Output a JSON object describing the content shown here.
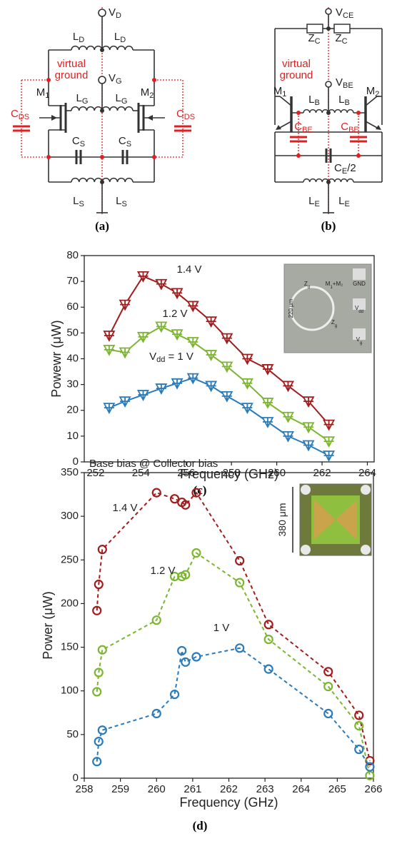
{
  "circuits": [
    {
      "panel": "(a)",
      "labels": [
        {
          "t": "V",
          "s": "D"
        },
        {
          "t": "L",
          "s": "D"
        },
        {
          "t": "L",
          "s": "D"
        },
        {
          "t": "virtual",
          "color": "#e02020"
        },
        {
          "t": "ground",
          "color": "#e02020"
        },
        {
          "t": "V",
          "s": "G"
        },
        {
          "t": "C",
          "s": "DS",
          "color": "#e02020"
        },
        {
          "t": "C",
          "s": "DS",
          "color": "#e02020"
        },
        {
          "t": "M",
          "s": "1"
        },
        {
          "t": "M",
          "s": "2"
        },
        {
          "t": "L",
          "s": "G"
        },
        {
          "t": "L",
          "s": "G"
        },
        {
          "t": "C",
          "s": "S"
        },
        {
          "t": "C",
          "s": "S"
        },
        {
          "t": "L",
          "s": "S"
        },
        {
          "t": "L",
          "s": "S"
        }
      ]
    },
    {
      "panel": "(b)",
      "labels": [
        {
          "t": "V",
          "s": "CE"
        },
        {
          "t": "Z",
          "s": "C"
        },
        {
          "t": "Z",
          "s": "C"
        },
        {
          "t": "virtual",
          "color": "#e02020"
        },
        {
          "t": "ground",
          "color": "#e02020"
        },
        {
          "t": "V",
          "s": "BE"
        },
        {
          "t": "M",
          "s": "1"
        },
        {
          "t": "M",
          "s": "2"
        },
        {
          "t": "L",
          "s": "B"
        },
        {
          "t": "L",
          "s": "B"
        },
        {
          "t": "C",
          "s": "BE",
          "color": "#e02020"
        },
        {
          "t": "C",
          "s": "BE",
          "color": "#e02020"
        },
        {
          "t": "C",
          "s": "E",
          "after": "/2"
        },
        {
          "t": "L",
          "s": "E"
        },
        {
          "t": "L",
          "s": "E"
        }
      ]
    }
  ],
  "chart_data": [
    {
      "type": "line",
      "panel": "(c)",
      "xlabel": "Frequency (GHz)",
      "ylabel": "Powewr (μW)",
      "x": [
        252.6,
        253.3,
        254.1,
        254.9,
        255.6,
        256.3,
        257.1,
        257.8,
        258.7,
        259.6,
        260.5,
        261.4,
        262.3
      ],
      "xlim": [
        251.5,
        264.3
      ],
      "xticks": [
        252,
        254,
        256,
        258,
        260,
        262,
        264
      ],
      "ylim": [
        0,
        80
      ],
      "yticks": [
        0,
        10,
        20,
        30,
        40,
        50,
        60,
        70,
        80
      ],
      "marker": "triangle-cross",
      "line_style": "solid",
      "series": [
        {
          "name": "1.4 V",
          "color": "#a21d1d",
          "values": [
            49,
            61,
            72,
            69,
            65.5,
            60.5,
            54.5,
            48,
            40,
            36,
            29.5,
            23.5,
            14.5
          ]
        },
        {
          "name": "1.2 V",
          "color": "#7cb52f",
          "values": [
            43.5,
            42.5,
            48.5,
            52.5,
            49.5,
            46.5,
            41.5,
            37,
            30.5,
            23,
            17.5,
            13.5,
            8
          ]
        },
        {
          "name": "1 V",
          "color": "#2b7bba",
          "values": [
            21,
            23.5,
            26,
            28.5,
            30.5,
            32.5,
            29.5,
            25.5,
            21,
            15.5,
            10,
            6.5,
            2.5
          ]
        }
      ],
      "annotations": [
        {
          "t": "1.4 V"
        },
        {
          "t": "1.2 V"
        },
        {
          "t": "V",
          "s": "dd",
          "after": " = 1 V"
        }
      ],
      "inset_labels": [
        {
          "t": "Z",
          "s": "d"
        },
        {
          "t": "M",
          "s": "1",
          "after": "+M₂"
        },
        {
          "t": "GND"
        },
        {
          "t": "V",
          "s": "dd"
        },
        {
          "t": "V",
          "s": "g"
        },
        {
          "t": "Z",
          "s": "g"
        },
        {
          "t": "220 μm"
        }
      ]
    },
    {
      "type": "line",
      "panel": "(d)",
      "xlabel": "Frequency (GHz)",
      "ylabel": "Power (μW)",
      "x": [
        258.35,
        258.4,
        258.5,
        260,
        260.5,
        260.7,
        260.8,
        261.1,
        262.3,
        263.1,
        264.75,
        265.6,
        265.9
      ],
      "xlim": [
        258,
        266
      ],
      "xticks": [
        258,
        259,
        260,
        261,
        262,
        263,
        264,
        265,
        266
      ],
      "ylim": [
        0,
        350
      ],
      "yticks": [
        0,
        50,
        100,
        150,
        200,
        250,
        300,
        350
      ],
      "marker": "open-circle",
      "line_style": "dashed",
      "series": [
        {
          "name": "1.4 V",
          "color": "#a21d1d",
          "values": [
            192,
            222,
            262,
            327,
            320,
            316,
            313,
            327,
            249,
            176,
            122,
            72,
            20
          ]
        },
        {
          "name": "1.2 V",
          "color": "#7cb52f",
          "values": [
            99,
            121,
            147,
            181,
            231,
            231,
            233,
            258,
            224,
            159,
            105,
            60,
            3
          ]
        },
        {
          "name": "1 V",
          "color": "#2b7bba",
          "values": [
            19,
            42,
            55,
            74,
            96,
            146,
            133,
            139,
            149,
            125,
            74,
            33,
            13
          ]
        }
      ],
      "annotations": [
        {
          "t": "Base bias @ Collector bias"
        },
        {
          "t": "1.4 V"
        },
        {
          "t": "1.2 V"
        },
        {
          "t": "1 V"
        }
      ],
      "inset_labels": [
        {
          "t": "380 μm"
        }
      ]
    }
  ]
}
